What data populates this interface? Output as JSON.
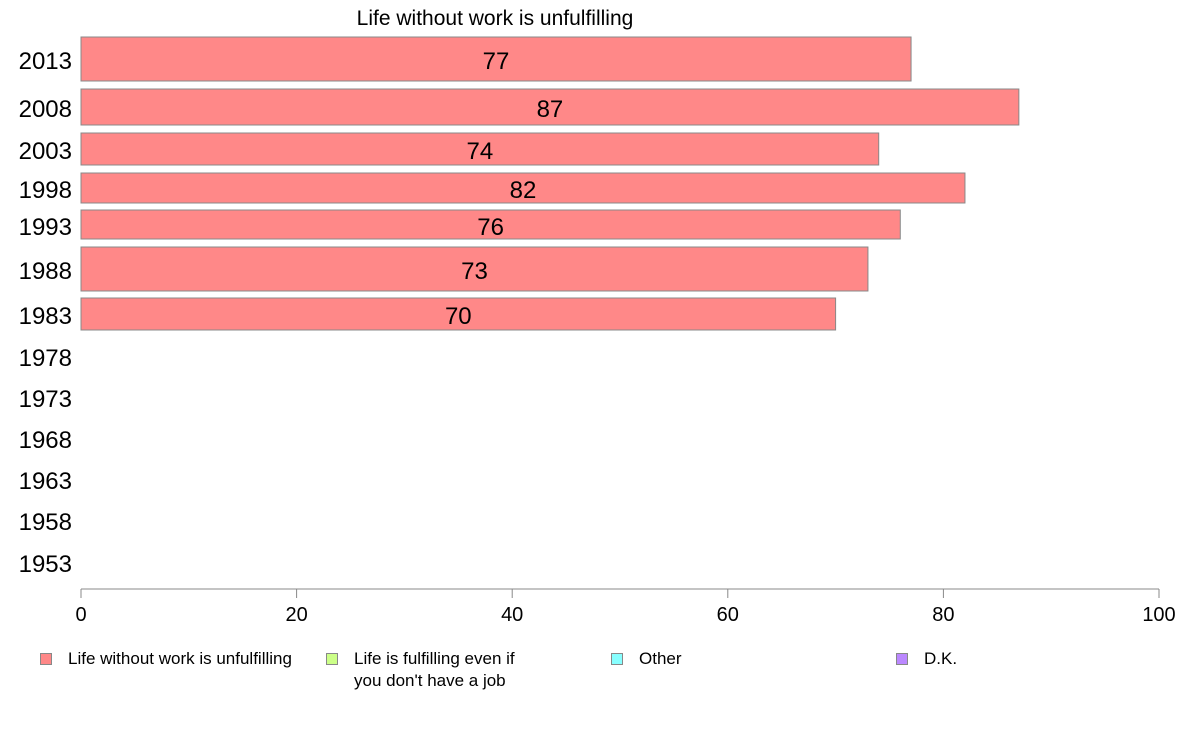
{
  "chart_data": {
    "type": "bar",
    "orientation": "horizontal",
    "title": "Life without work is unfulfilling",
    "categories": [
      "2013",
      "2008",
      "2003",
      "1998",
      "1993",
      "1988",
      "1983",
      "1978",
      "1973",
      "1968",
      "1963",
      "1958",
      "1953"
    ],
    "series": [
      {
        "name": "Life without work is unfulfilling",
        "color": "#ff8888",
        "values": [
          77,
          87,
          74,
          82,
          76,
          73,
          70,
          null,
          null,
          null,
          null,
          null,
          null
        ]
      }
    ],
    "xlim": [
      0,
      100
    ],
    "xticks": [
      "0",
      "20",
      "40",
      "60",
      "80",
      "100"
    ],
    "grid": false,
    "legend_position": "bottom"
  },
  "legend": [
    {
      "label": "Life without work is unfulfilling",
      "color": "#ff8888"
    },
    {
      "label": "Life is fulfilling even if\nyou don't have a job",
      "color": "#ccff88"
    },
    {
      "label": "Other",
      "color": "#88ffff"
    },
    {
      "label": "D.K.",
      "color": "#bb88ff"
    }
  ]
}
